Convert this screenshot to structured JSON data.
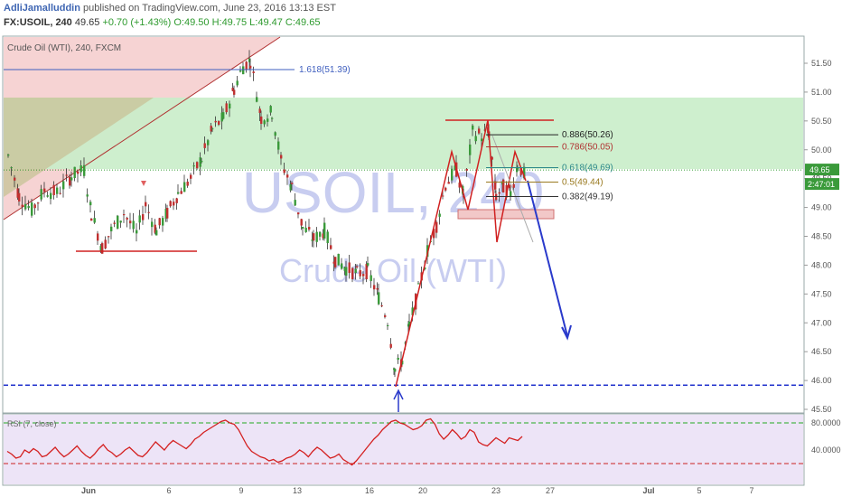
{
  "header": {
    "author": "AdliJamalluddin",
    "published": "published on TradingView.com, June 23, 2016 13:13 EST",
    "symbol": "FX:USOIL, 240",
    "last": "49.65",
    "change": "+0.70 (+1.43%)",
    "open": "O:49.50",
    "high": "H:49.75",
    "low": "L:49.47",
    "close": "C:49.65"
  },
  "chart_data": {
    "type": "candlestick",
    "title": "Crude Oil (WTI), 240, FXCM",
    "watermark_symbol": "USOIL, 240",
    "watermark_name": "Crude Oil (WTI)",
    "y_ticks": [
      "51.50",
      "51.00",
      "50.50",
      "50.00",
      "49.50",
      "49.00",
      "48.50",
      "48.00",
      "47.50",
      "47.00",
      "46.50",
      "46.00",
      "45.50"
    ],
    "ylim": [
      45.5,
      51.75
    ],
    "x_ticks": [
      "Jun",
      "6",
      "9",
      "13",
      "16",
      "20",
      "23",
      "27",
      "Jul",
      "5",
      "7"
    ],
    "last_price_label": "49.65",
    "countdown_label": "2:47:01",
    "fib_levels": [
      {
        "label": "1.618(51.39)",
        "value": 51.39,
        "color": "#3f5fbf"
      },
      {
        "label": "0.886(50.26)",
        "value": 50.26,
        "color": "#222222"
      },
      {
        "label": "0.786(50.05)",
        "value": 50.05,
        "color": "#b03030"
      },
      {
        "label": "0.618(49.69)",
        "value": 49.69,
        "color": "#2e8a8a"
      },
      {
        "label": "0.5(49.44)",
        "value": 49.44,
        "color": "#9a7a20"
      },
      {
        "label": "0.382(49.19)",
        "value": 49.19,
        "color": "#333333"
      }
    ],
    "support_line": 45.92,
    "rsi": {
      "label": "RSI (7, close)",
      "y_ticks": [
        "80.0000",
        "40.0000"
      ],
      "upper": 80,
      "lower": 20,
      "values": [
        38,
        34,
        28,
        30,
        40,
        36,
        42,
        38,
        30,
        32,
        38,
        44,
        36,
        30,
        34,
        40,
        46,
        38,
        32,
        28,
        34,
        42,
        48,
        40,
        36,
        30,
        34,
        40,
        44,
        38,
        32,
        30,
        36,
        44,
        52,
        46,
        40,
        48,
        54,
        50,
        46,
        42,
        48,
        56,
        60,
        66,
        70,
        74,
        78,
        82,
        84,
        80,
        78,
        70,
        58,
        46,
        38,
        34,
        30,
        28,
        24,
        26,
        22,
        24,
        28,
        30,
        34,
        40,
        36,
        30,
        38,
        44,
        40,
        34,
        28,
        30,
        34,
        26,
        22,
        18,
        24,
        32,
        40,
        48,
        56,
        62,
        70,
        76,
        82,
        84,
        80,
        78,
        74,
        70,
        72,
        76,
        84,
        86,
        78,
        64,
        56,
        62,
        70,
        64,
        56,
        60,
        70,
        66,
        52,
        48,
        46,
        52,
        58,
        54,
        50,
        58,
        56,
        54,
        60
      ]
    }
  }
}
